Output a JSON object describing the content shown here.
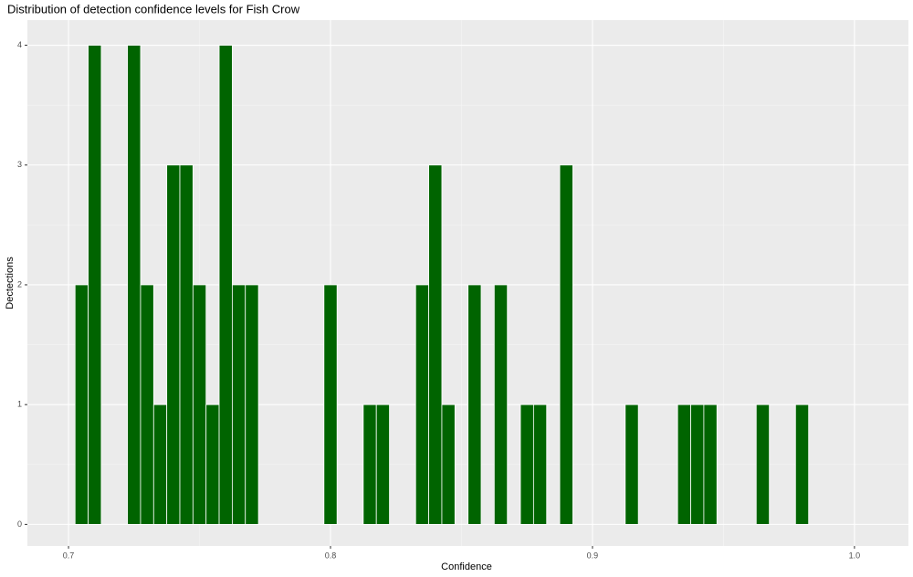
{
  "chart_data": {
    "type": "histogram",
    "title": "Distribution of detection confidence levels for Fish Crow",
    "x_label": "Confidence",
    "y_label": "Dectections",
    "color": "#006400",
    "grid": true,
    "bins": [
      0.7025,
      0.7075,
      0.7125,
      0.7175,
      0.7225,
      0.7275,
      0.7325,
      0.7375,
      0.7425,
      0.7475,
      0.7525,
      0.7575,
      0.7625,
      0.7675,
      0.7725,
      0.7775,
      0.7825,
      0.7875,
      0.7925,
      0.7975,
      0.8025,
      0.8075,
      0.8125,
      0.8175,
      0.8225,
      0.8275,
      0.8325,
      0.8375,
      0.8425,
      0.8475,
      0.8525,
      0.8575,
      0.8625,
      0.8675,
      0.8725,
      0.8775,
      0.8825,
      0.8875,
      0.8925,
      0.8975,
      0.9025,
      0.9075,
      0.9125,
      0.9175,
      0.9225,
      0.9275,
      0.9325,
      0.9375,
      0.9425,
      0.9475,
      0.9525,
      0.9575,
      0.9625,
      0.9675,
      0.9725,
      0.9775,
      0.9825
    ],
    "values": [
      2,
      4,
      0,
      0,
      4,
      2,
      1,
      3,
      3,
      2,
      1,
      4,
      2,
      2,
      0,
      0,
      0,
      0,
      0,
      2,
      0,
      0,
      1,
      1,
      0,
      0,
      2,
      3,
      1,
      0,
      2,
      0,
      2,
      0,
      1,
      1,
      0,
      3,
      0,
      0,
      0,
      0,
      1,
      0,
      0,
      0,
      1,
      1,
      1,
      0,
      0,
      0,
      1,
      0,
      0,
      1
    ],
    "xlim": [
      0.6843,
      1.0206
    ],
    "xticks": [
      0.7,
      0.8,
      0.9,
      {
        "value": 1.0,
        "label": "1.0"
      }
    ],
    "ylim": [
      -0.18,
      4.21
    ],
    "yticks": [
      0,
      1,
      2,
      3,
      4
    ]
  }
}
